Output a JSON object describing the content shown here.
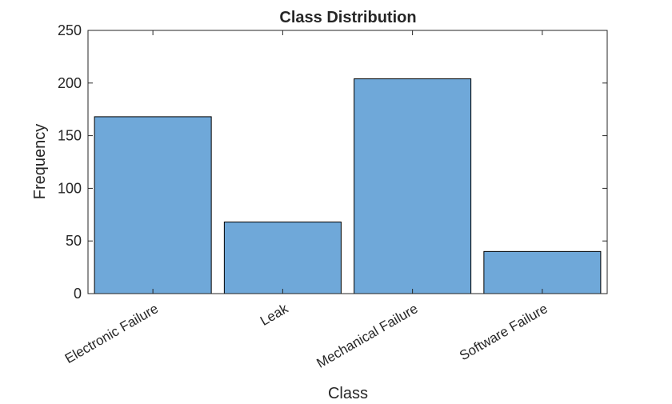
{
  "chart_data": {
    "type": "bar",
    "title": "Class Distribution",
    "xlabel": "Class",
    "ylabel": "Frequency",
    "categories": [
      "Electronic Failure",
      "Leak",
      "Mechanical Failure",
      "Software Failure"
    ],
    "values": [
      168,
      68,
      204,
      40
    ],
    "ylim": [
      0,
      250
    ],
    "yticks": [
      0,
      50,
      100,
      150,
      200,
      250
    ],
    "grid": false,
    "bar_color": "#6fa8d9",
    "bar_edge_color": "#000000"
  }
}
